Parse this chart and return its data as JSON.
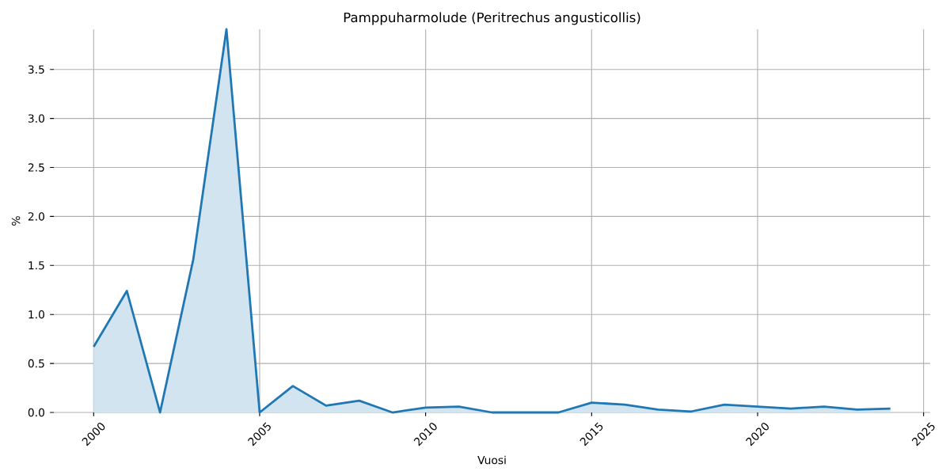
{
  "chart_data": {
    "type": "area",
    "title": "Pamppuharmolude (Peritrechus angusticollis)",
    "xlabel": "Vuosi",
    "ylabel": "%",
    "x": [
      2000,
      2001,
      2002,
      2003,
      2004,
      2005,
      2006,
      2007,
      2008,
      2009,
      2010,
      2011,
      2012,
      2013,
      2014,
      2015,
      2016,
      2017,
      2018,
      2019,
      2020,
      2021,
      2022,
      2023,
      2024
    ],
    "values": [
      0.67,
      1.24,
      0,
      1.56,
      3.91,
      0,
      0.27,
      0.07,
      0.12,
      0,
      0.05,
      0.06,
      0,
      0,
      0,
      0.1,
      0.08,
      0.03,
      0.01,
      0.08,
      0.06,
      0.04,
      0.06,
      0.03,
      0.04
    ],
    "color": "#1f77b4",
    "xlim": [
      1998.8,
      2025.2
    ],
    "ylim": [
      0,
      3.91
    ],
    "xticks": [
      2000,
      2005,
      2010,
      2015,
      2020,
      2025
    ],
    "yticks": [
      {
        "value": 0,
        "label": "0.0"
      },
      0.5,
      {
        "value": 1,
        "label": "1.0"
      },
      1.5,
      {
        "value": 2,
        "label": "2.0"
      },
      2.5,
      {
        "value": 3,
        "label": "3.0"
      },
      3.5
    ],
    "grid": true
  }
}
